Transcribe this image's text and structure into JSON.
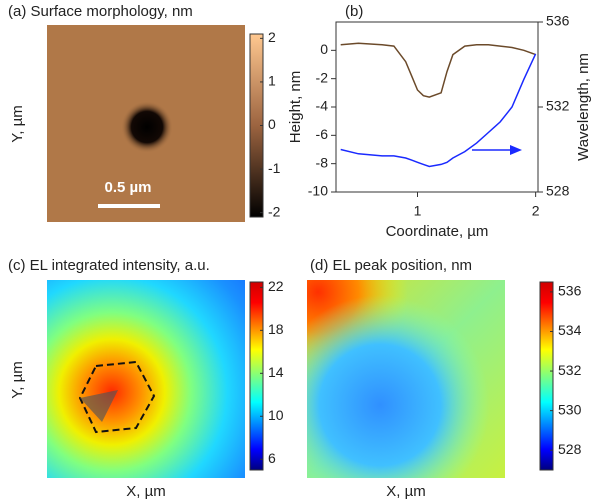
{
  "chart_data": [
    {
      "type": "heatmap",
      "title": "(a) Surface morphology, nm",
      "ylabel": "Y, µm",
      "annotation": "0.5 µm",
      "zlim": [
        -2.1,
        2.1
      ],
      "zticks": [
        2,
        1,
        0,
        -1,
        -2
      ],
      "colormap": "copper"
    },
    {
      "type": "line",
      "title": "(b)",
      "xlabel": "Coordinate, µm",
      "ylabel": "Height, nm",
      "y2label": "Wavelength, nm",
      "x": [
        0.35,
        0.5,
        0.7,
        0.8,
        0.9,
        0.95,
        1.0,
        1.05,
        1.1,
        1.2,
        1.25,
        1.3,
        1.4,
        1.5,
        1.6,
        1.7,
        1.8,
        1.9,
        2.0
      ],
      "xlim": [
        0.31,
        2.02
      ],
      "xticks": [
        1,
        2
      ],
      "ylim": [
        -10,
        2
      ],
      "yticks": [
        0,
        -2,
        -4,
        -6,
        -8,
        -10
      ],
      "y2lim": [
        528,
        536
      ],
      "y2ticks": [
        528,
        532,
        536
      ],
      "series": [
        {
          "color": "#6b4a2a",
          "values": [
            0.4,
            0.5,
            0.4,
            0.3,
            -0.8,
            -1.8,
            -2.8,
            -3.2,
            -3.3,
            -3.0,
            -1.5,
            -0.3,
            0.3,
            0.4,
            0.4,
            0.3,
            0.2,
            0.0,
            -0.3
          ]
        },
        {
          "color": "#1a2aff",
          "axis": "y2",
          "values": [
            530.0,
            529.8,
            529.7,
            529.7,
            529.6,
            529.5,
            529.4,
            529.3,
            529.2,
            529.3,
            529.4,
            529.6,
            529.9,
            530.3,
            530.8,
            531.3,
            532.0,
            533.3,
            534.5
          ]
        }
      ]
    },
    {
      "type": "heatmap",
      "title": "(c) EL integrated intensity, a.u.",
      "xlabel": "X, µm",
      "ylabel": "Y, µm",
      "zlim": [
        5,
        22.5
      ],
      "zticks": [
        22,
        18,
        14,
        10,
        6
      ],
      "colormap": "jet"
    },
    {
      "type": "heatmap",
      "title": "(d) EL peak position, nm",
      "xlabel": "X, µm",
      "zlim": [
        527,
        536.5
      ],
      "zticks": [
        536,
        534,
        532,
        530,
        528
      ],
      "colormap": "jet"
    }
  ]
}
